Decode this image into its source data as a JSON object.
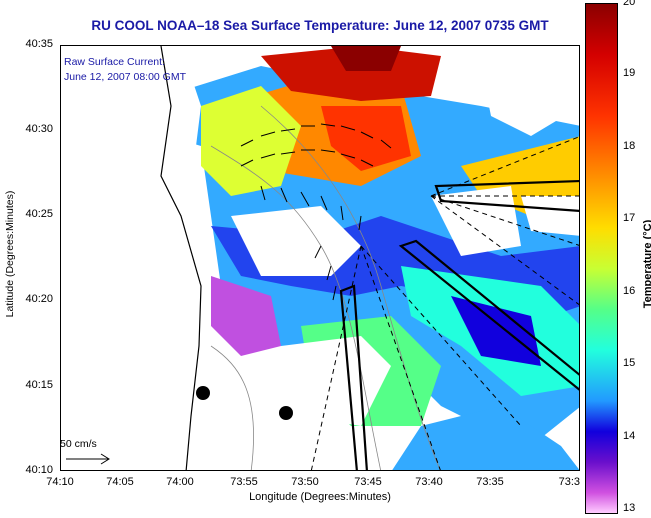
{
  "title": "RU COOL  NOAA–18  Sea Surface Temperature:  June 12, 2007 0735 GMT",
  "raw_current": {
    "line1": "Raw Surface Current:",
    "line2": "June 12, 2007 08:00 GMT"
  },
  "axes": {
    "xlabel": "Longitude (Degrees:Minutes)",
    "ylabel": "Latitude (Degrees:Minutes)",
    "xticks": [
      "74:10",
      "74:05",
      "74:00",
      "73:55",
      "73:50",
      "73:45",
      "73:40",
      "73:35",
      "73:3"
    ],
    "yticks": [
      "40:35",
      "40:30",
      "40:25",
      "40:20",
      "40:15",
      "40:10"
    ]
  },
  "scale_label": "50 cm/s",
  "colorbar": {
    "label": "Temperature (°C)",
    "ticks": [
      "20",
      "19",
      "18",
      "17",
      "16",
      "15",
      "14",
      "13"
    ],
    "min": 13,
    "max": 20
  },
  "colors": {
    "title": "#1a1aa6",
    "land_mask": "#ffffff"
  }
}
